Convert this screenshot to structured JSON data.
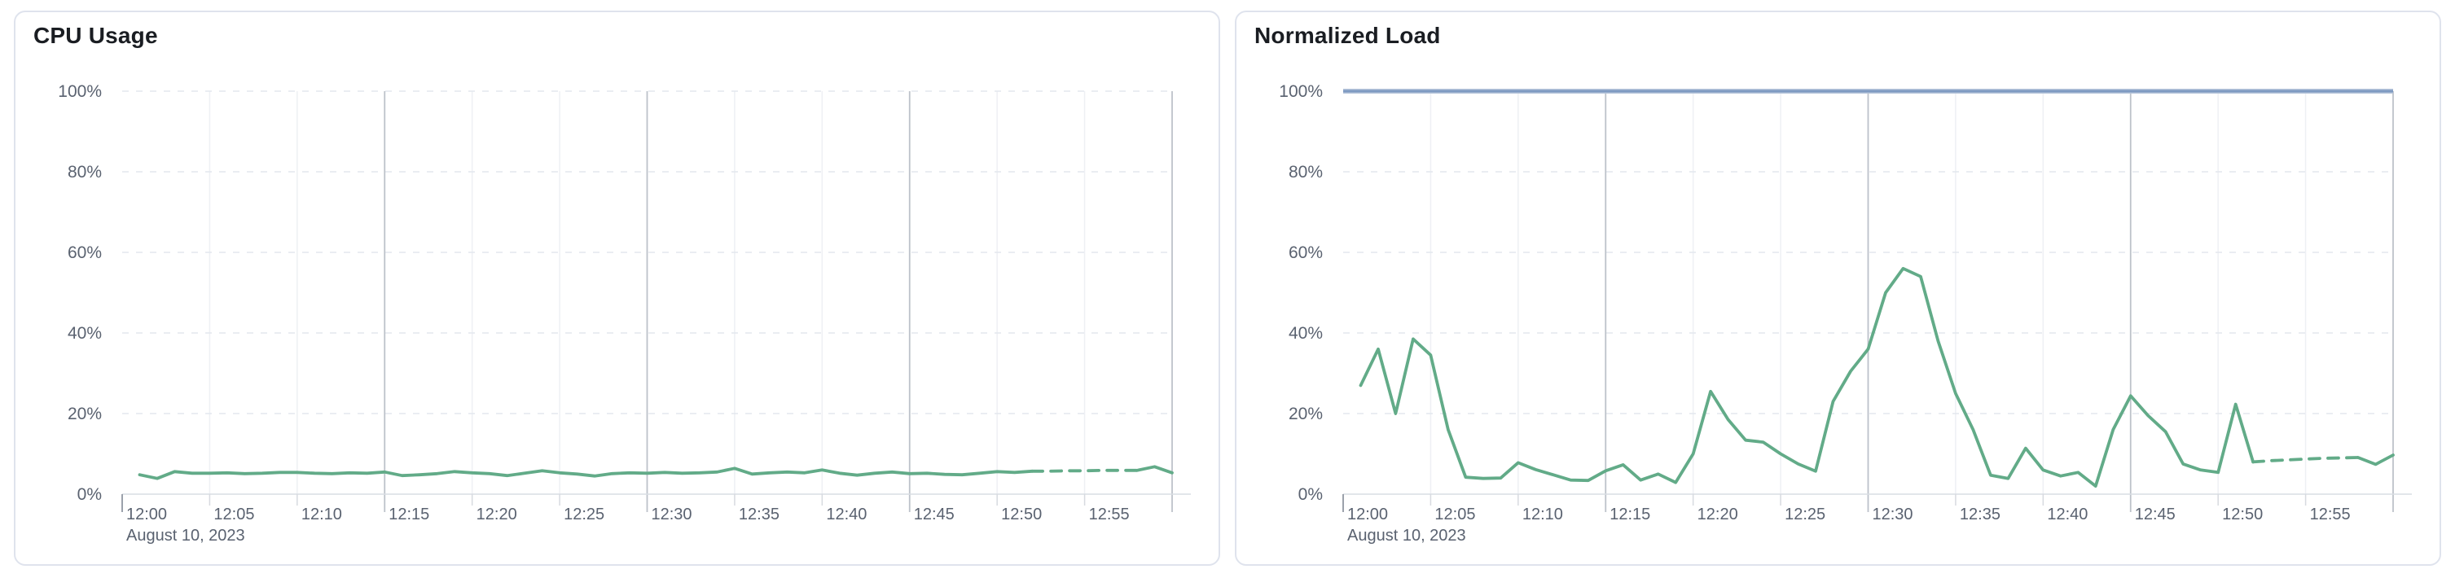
{
  "colors": {
    "page_background": "#ffffff",
    "card_border": "#dfe3ed",
    "card_background": "#ffffff",
    "title_text": "#1a1d22",
    "axis_label_text": "#5a6270",
    "axis_line": "#d9dde3",
    "h_gridline_dashed": "#e3e7ee",
    "v_gridline_major": "#bdc2ca",
    "v_gridline_minor": "#eef0f4",
    "tick_mark": "#d7dae0",
    "tick_mark_first": "#9ba1ab",
    "series_green": "#62ab88",
    "limit_line_blue": "#7e9ac1",
    "limit_line_halo": "#b7c5da"
  },
  "chart_data": [
    {
      "type": "line",
      "title": "CPU Usage",
      "date_label": "August 10, 2023",
      "x_tick_labels": [
        "12:00",
        "12:05",
        "12:10",
        "12:15",
        "12:20",
        "12:25",
        "12:30",
        "12:35",
        "12:40",
        "12:45",
        "12:50",
        "12:55"
      ],
      "x_tick_interval_min": 5,
      "x_domain_minutes": [
        0,
        60
      ],
      "major_gridline_minutes": [
        15,
        30,
        45,
        60
      ],
      "y_tick_labels": [
        "0%",
        "20%",
        "40%",
        "60%",
        "80%",
        "100%"
      ],
      "ylim": [
        0,
        100
      ],
      "grid": "horizontal-dashed, vertical-solid",
      "legend": "none",
      "series": [
        {
          "name": "cpu-usage",
          "color": "#62ab88",
          "dash_start_min": 52,
          "dash_end_min": 58,
          "minutes": [
            1,
            2,
            3,
            4,
            5,
            6,
            7,
            8,
            9,
            10,
            11,
            12,
            13,
            14,
            15,
            16,
            17,
            18,
            19,
            20,
            21,
            22,
            23,
            24,
            25,
            26,
            27,
            28,
            29,
            30,
            31,
            32,
            33,
            34,
            35,
            36,
            37,
            38,
            39,
            40,
            41,
            42,
            43,
            44,
            45,
            46,
            47,
            48,
            49,
            50,
            51,
            52,
            53,
            54,
            55,
            56,
            57,
            58,
            59,
            60
          ],
          "values": [
            4.8,
            3.9,
            5.6,
            5.2,
            5.2,
            5.3,
            5.1,
            5.2,
            5.4,
            5.4,
            5.2,
            5.1,
            5.3,
            5.2,
            5.5,
            4.6,
            4.8,
            5.1,
            5.6,
            5.3,
            5.1,
            4.6,
            5.2,
            5.8,
            5.3,
            5.0,
            4.5,
            5.1,
            5.3,
            5.2,
            5.4,
            5.2,
            5.3,
            5.5,
            6.4,
            5.0,
            5.3,
            5.5,
            5.3,
            6.0,
            5.2,
            4.7,
            5.2,
            5.5,
            5.1,
            5.2,
            4.9,
            4.8,
            5.2,
            5.6,
            5.4,
            5.7,
            5.7,
            5.8,
            5.8,
            5.9,
            5.9,
            5.9,
            6.8,
            5.3
          ]
        }
      ]
    },
    {
      "type": "line",
      "title": "Normalized Load",
      "date_label": "August 10, 2023",
      "x_tick_labels": [
        "12:00",
        "12:05",
        "12:10",
        "12:15",
        "12:20",
        "12:25",
        "12:30",
        "12:35",
        "12:40",
        "12:45",
        "12:50",
        "12:55"
      ],
      "x_tick_interval_min": 5,
      "x_domain_minutes": [
        0,
        60
      ],
      "major_gridline_minutes": [
        15,
        30,
        45,
        60
      ],
      "y_tick_labels": [
        "0%",
        "20%",
        "40%",
        "60%",
        "80%",
        "100%"
      ],
      "ylim": [
        0,
        100
      ],
      "grid": "horizontal-dashed, vertical-solid",
      "legend": "none",
      "series": [
        {
          "name": "normalized-load",
          "color": "#62ab88",
          "dash_start_min": 52,
          "dash_end_min": 58,
          "minutes": [
            1,
            2,
            3,
            4,
            5,
            6,
            7,
            8,
            9,
            10,
            11,
            12,
            13,
            14,
            15,
            16,
            17,
            18,
            19,
            20,
            21,
            22,
            23,
            24,
            25,
            26,
            27,
            28,
            29,
            30,
            31,
            32,
            33,
            34,
            35,
            36,
            37,
            38,
            39,
            40,
            41,
            42,
            43,
            44,
            45,
            46,
            47,
            48,
            49,
            50,
            51,
            52,
            53,
            54,
            55,
            56,
            57,
            58,
            59,
            60
          ],
          "values": [
            27,
            36,
            20,
            38.5,
            34.5,
            16,
            4.2,
            3.9,
            4.0,
            7.8,
            6.1,
            4.8,
            3.5,
            3.4,
            5.8,
            7.3,
            3.5,
            5.0,
            2.9,
            10,
            25.5,
            18.5,
            13.4,
            12.9,
            10,
            7.5,
            5.7,
            23,
            30.5,
            36,
            50,
            56,
            54,
            38,
            25,
            16,
            4.7,
            3.9,
            11.4,
            6.0,
            4.5,
            5.4,
            2.0,
            16,
            24.4,
            19.5,
            15.5,
            7.5,
            6.0,
            5.4,
            22.3,
            8.0,
            8.3,
            8.5,
            8.7,
            8.9,
            9.0,
            9.1,
            7.4,
            9.7
          ]
        },
        {
          "name": "limit-100-percent",
          "color": "#7e9ac1",
          "constant": 100
        }
      ]
    }
  ]
}
